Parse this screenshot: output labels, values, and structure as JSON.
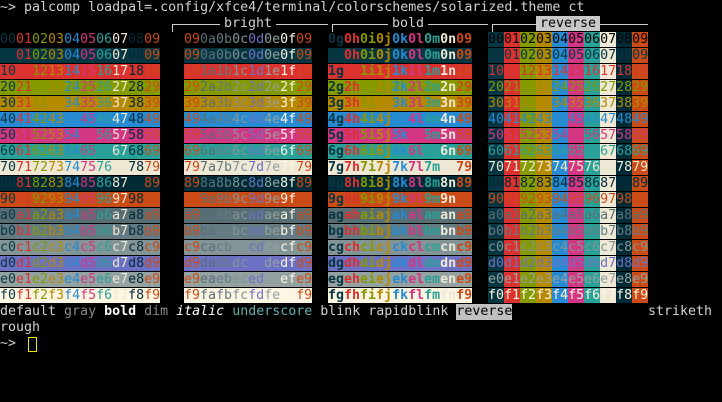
{
  "prompt": "~>",
  "command": "palcomp loadpal=.config/xfce4/terminal/colorschemes/solarized.theme ct",
  "headers": [
    "bright",
    "bold",
    "reverse"
  ],
  "grid": [
    [
      "00010203040506070809",
      "  090a0b0c0d0e0f09  ",
      "0g0h0i0j0k0l0m0n09  ",
      "00010203040506070809"
    ],
    [
      "00010203040506070809",
      "  090a0b0c0d0e0f09  ",
      "0g0h0i0j0k0l0m0n09  ",
      "00010203040506070809"
    ],
    [
      "10111213141516171819",
      "  191a1b1c1d1e1f19  ",
      "1g1h1i1j1k1l1m1n19  ",
      "10111213141516171819"
    ],
    [
      "20212223242526272829",
      "  292a2b2c2d2e2f29  ",
      "2g2h2i2j2k2l2m2n29  ",
      "20212223242526272829"
    ],
    [
      "30313233343536373839",
      "  393a3b3c3d3e3f39  ",
      "3g3h3i3j3k3l3m3n39  ",
      "30313233343536373839"
    ],
    [
      "40414243444546474849",
      "  494a4b4c4d4e4f49  ",
      "4g4h4i4j4k4l4m4n49  ",
      "40414243444546474849"
    ],
    [
      "50515253545556575859",
      "  595a5b5c5d5e5f59  ",
      "5g5h5i5j5k5l5m5n59  ",
      "50515253545556575859"
    ],
    [
      "60616263646566676869",
      "  696a6b6c6d6e6f69  ",
      "6g6h6i6j6k6l6m6n69  ",
      "60616263646566676869"
    ],
    [
      "70717273747576777879",
      "  797a7b7c7d7e7f79  ",
      "7g7h7i7j7k7l7m7n79  ",
      "70717273747576777879"
    ],
    [
      "80818283848586878889",
      "  898a8b8c8d8e8f89  ",
      "8g8h8i8j8k8l8m8n89  ",
      "80818283848586878889"
    ],
    [
      "90919293949596979899",
      "  999a9b9c9d9e9f99  ",
      "9g9h9i9j9k9l9m9n99  ",
      "90919293949596979899"
    ],
    [
      "a0a1a2a3a4a5a6a7a8a9",
      "  a9aaabacadaeafa9  ",
      "agahaiajakalamana9  ",
      "a0a1a2a3a4a5a6a7a8a9"
    ],
    [
      "b0b1b2b3b4b5b6b7b8b9",
      "  b9babbbcbdbebfb9  ",
      "bgbhbibjbkblbmbnb9  ",
      "b0b1b2b3b4b5b6b7b8b9"
    ],
    [
      "c0c1c2c3c4c5c6c7c8c9",
      "  c9cacbcccdcecfc9  ",
      "cgchcicjckclcmcnc9  ",
      "c0c1c2c3c4c5c6c7c8c9"
    ],
    [
      "d0d1d2d3d4d5d6d7d8d9",
      "  d9dadbdcdddedfd9  ",
      "dgdhdidjdkdldmdnd9  ",
      "d0d1d2d3d4d5d6d7d8d9"
    ],
    [
      "e0e1e2e3e4e5e6e7e8e9",
      "  e9eaebecedeeefe9  ",
      "egeheiejekelemene9  ",
      "e0e1e2e3e4e5e6e7e8e9"
    ],
    [
      "f0f1f2f3f4f5f6f7f8f9",
      "  f9fafbfcfdfefff9  ",
      "fgfhfifjfkflfmfnf9  ",
      "f0f1f2f3f4f5f6f7f8f9"
    ]
  ],
  "styles": [
    "default",
    "gray",
    "bold",
    "dim",
    "italic",
    "underscore",
    "blink",
    "rapidblink",
    "reverse"
  ],
  "style_cut": "striketh",
  "style_wrap": "rough"
}
